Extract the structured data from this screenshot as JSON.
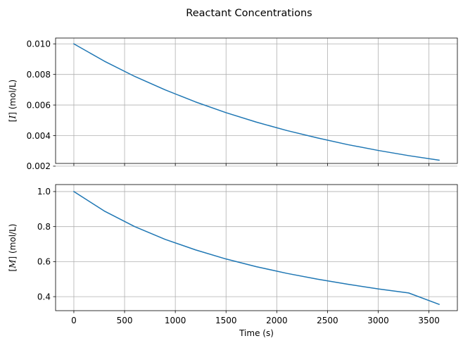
{
  "suptitle": "Reactant Concentrations",
  "colors": {
    "series": "#1f77b4",
    "grid": "#b0b0b0",
    "axes": "#000000"
  },
  "chart_data": [
    {
      "type": "line",
      "title": "",
      "xlabel": "",
      "ylabel_parts": {
        "open": "[",
        "symbol": "I",
        "close": "] (mol/L)"
      },
      "xlim": [
        -180,
        3780
      ],
      "ylim": [
        0.00218,
        0.01038
      ],
      "xticks": [
        0,
        500,
        1000,
        1500,
        2000,
        2500,
        3000,
        3500
      ],
      "xtick_labels_visible": false,
      "yticks": [
        0.002,
        0.004,
        0.006,
        0.008,
        0.01
      ],
      "ytick_labels": [
        "0.002",
        "0.004",
        "0.006",
        "0.008",
        "0.010"
      ],
      "grid": true,
      "series": [
        {
          "x": [
            0,
            300,
            600,
            900,
            1200,
            1500,
            1800,
            2100,
            2400,
            2700,
            3000,
            3300,
            3600
          ],
          "y": [
            0.01,
            0.00887,
            0.00787,
            0.00699,
            0.0062,
            0.0055,
            0.00488,
            0.00433,
            0.00385,
            0.00341,
            0.00303,
            0.00269,
            0.00239
          ]
        }
      ]
    },
    {
      "type": "line",
      "title": "",
      "xlabel": "Time (s)",
      "ylabel_parts": {
        "open": "[",
        "symbol": "M",
        "close": "] (mol/L)"
      },
      "xlim": [
        -180,
        3780
      ],
      "ylim": [
        0.32,
        1.04
      ],
      "xticks": [
        0,
        500,
        1000,
        1500,
        2000,
        2500,
        3000,
        3500
      ],
      "xtick_labels": [
        "0",
        "500",
        "1000",
        "1500",
        "2000",
        "2500",
        "3000",
        "3500"
      ],
      "xtick_labels_visible": true,
      "yticks": [
        0.4,
        0.6,
        0.8,
        1.0
      ],
      "ytick_labels": [
        "0.4",
        "0.6",
        "0.8",
        "1.0"
      ],
      "grid": true,
      "series": [
        {
          "x": [
            0,
            300,
            600,
            900,
            1200,
            1500,
            1800,
            2100,
            2400,
            2700,
            3000,
            3300,
            3600
          ],
          "y": [
            1.0,
            0.889,
            0.8,
            0.727,
            0.667,
            0.615,
            0.571,
            0.533,
            0.5,
            0.471,
            0.444,
            0.421,
            0.356
          ]
        }
      ]
    }
  ]
}
